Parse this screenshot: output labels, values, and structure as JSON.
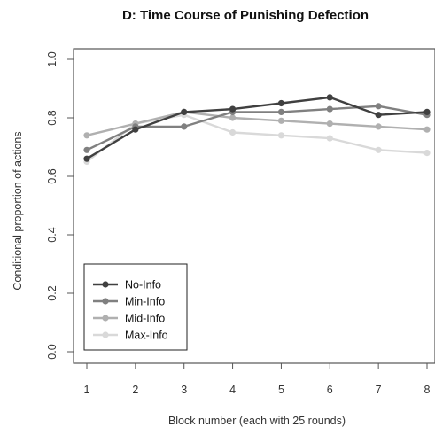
{
  "chart_data": {
    "type": "line",
    "title": "D: Time Course of Punishing Defection",
    "xlabel": "Block number (each with 25 rounds)",
    "ylabel": "Conditional proportion of actions",
    "x": [
      1,
      2,
      3,
      4,
      5,
      6,
      7,
      8
    ],
    "x_ticks": [
      "1",
      "2",
      "3",
      "4",
      "5",
      "6",
      "7",
      "8"
    ],
    "y_ticks": [
      "0.0",
      "0.2",
      "0.4",
      "0.6",
      "0.8",
      "1.0"
    ],
    "ylim": [
      0,
      1
    ],
    "xlim": [
      0.9,
      8.1
    ],
    "legend_position": "bottom-left",
    "series": [
      {
        "name": "No-Info",
        "color": "#404040",
        "values": [
          0.66,
          0.76,
          0.82,
          0.83,
          0.85,
          0.87,
          0.81,
          0.82
        ]
      },
      {
        "name": "Min-Info",
        "color": "#808080",
        "values": [
          0.69,
          0.77,
          0.77,
          0.82,
          0.82,
          0.83,
          0.84,
          0.81
        ]
      },
      {
        "name": "Mid-Info",
        "color": "#b0b0b0",
        "values": [
          0.74,
          0.78,
          0.82,
          0.8,
          0.79,
          0.78,
          0.77,
          0.76
        ]
      },
      {
        "name": "Max-Info",
        "color": "#d9d9d9",
        "values": [
          0.65,
          0.78,
          0.81,
          0.75,
          0.74,
          0.73,
          0.69,
          0.68
        ]
      }
    ]
  }
}
